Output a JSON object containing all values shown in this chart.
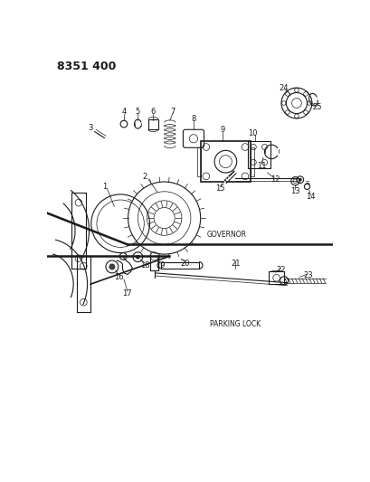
{
  "title": "8351 400",
  "governor_label": "GOVERNOR",
  "parking_label": "PARKING LOCK",
  "bg_color": "#ffffff",
  "line_color": "#1a1a1a",
  "title_fontsize": 9,
  "label_fontsize": 5.5,
  "number_fontsize": 6,
  "fig_width": 4.1,
  "fig_height": 5.33,
  "dpi": 100
}
